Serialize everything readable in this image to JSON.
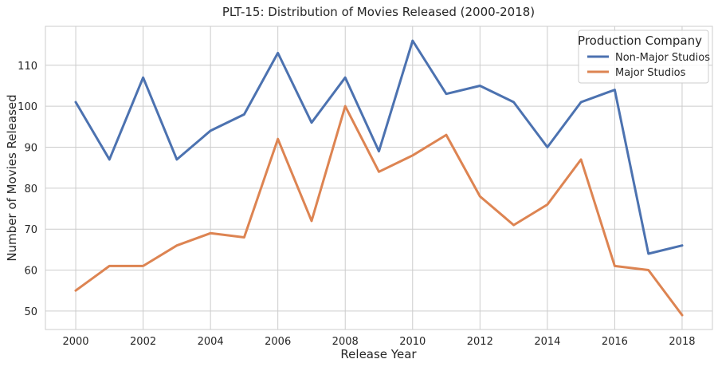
{
  "chart_data": {
    "type": "line",
    "title": "PLT-15: Distribution of Movies Released (2000-2018)",
    "xlabel": "Release Year",
    "ylabel": "Number of Movies Released",
    "x": [
      2000,
      2001,
      2002,
      2003,
      2004,
      2005,
      2006,
      2007,
      2008,
      2009,
      2010,
      2011,
      2012,
      2013,
      2014,
      2015,
      2016,
      2017,
      2018
    ],
    "xticks": [
      "2000",
      "2002",
      "2004",
      "2006",
      "2008",
      "2010",
      "2012",
      "2014",
      "2016",
      "2018"
    ],
    "yticks": [
      "50",
      "60",
      "70",
      "80",
      "90",
      "100",
      "110"
    ],
    "xlim": [
      1999.1,
      2018.9
    ],
    "ylim": [
      45.5,
      119.5
    ],
    "grid": true,
    "legend": {
      "title": "Production Company",
      "placement": "top-right"
    },
    "series": [
      {
        "name": "Non-Major Studios",
        "color": "#4c72b0",
        "values": [
          101,
          87,
          107,
          87,
          94,
          98,
          113,
          96,
          107,
          89,
          116,
          103,
          105,
          101,
          90,
          101,
          104,
          64,
          66
        ]
      },
      {
        "name": "Major Studios",
        "color": "#dd8452",
        "values": [
          55,
          61,
          61,
          66,
          69,
          68,
          92,
          72,
          100,
          84,
          88,
          93,
          78,
          71,
          76,
          87,
          61,
          60,
          49
        ]
      }
    ]
  }
}
